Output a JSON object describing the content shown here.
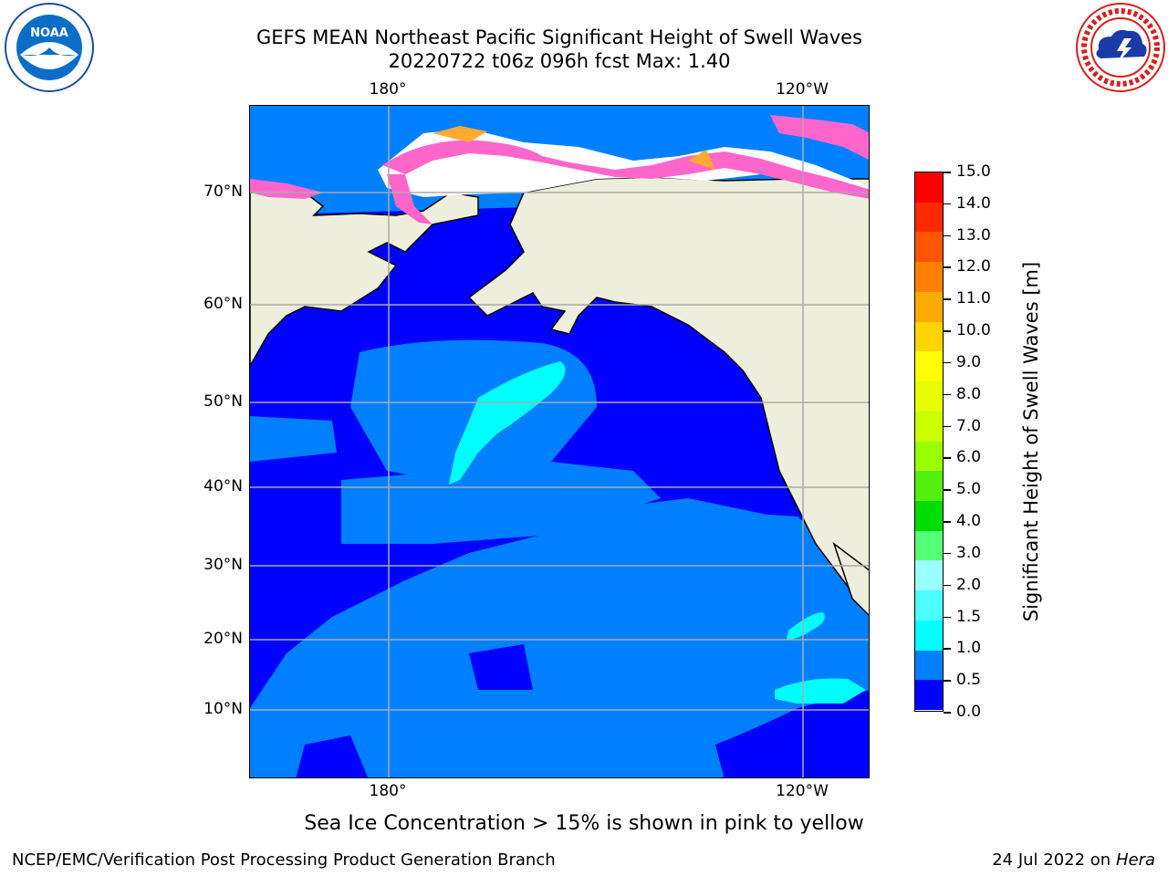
{
  "title_line1": "GEFS MEAN Northeast Pacific Significant Height of Swell Waves",
  "title_line2": "20220722 t06z 096h fcst   Max: 1.40",
  "logos": {
    "left": "noaa-logo",
    "right": "nws-logo"
  },
  "map": {
    "lon_labels": [
      "180°",
      "120°W"
    ],
    "lat_labels": [
      "70°N",
      "60°N",
      "50°N",
      "40°N",
      "30°N",
      "20°N",
      "10°N"
    ],
    "colors": {
      "land": "#eeeedd",
      "ice_white": "#ffffff",
      "ice_pink": "#ff66cc",
      "ice_orange": "#ffaa33",
      "band_0_0.5": "#0000ff",
      "band_0.5_1.0": "#0080ff",
      "band_1.0_1.5": "#00ffff",
      "band_1.5_2.0": "#4dffff"
    }
  },
  "colorbar": {
    "title": "Significant Height of Swell Waves [m]",
    "tick_labels": [
      "15.0",
      "14.0",
      "13.0",
      "12.0",
      "11.0",
      "10.0",
      "9.0",
      "8.0",
      "7.0",
      "6.0",
      "5.0",
      "4.0",
      "3.0",
      "2.0",
      "1.5",
      "1.0",
      "0.5",
      "0.0"
    ],
    "colors_top_to_bottom": [
      "#ff0000",
      "#ff2a00",
      "#ff5500",
      "#ff8000",
      "#ffaa00",
      "#ffd500",
      "#ffff00",
      "#e6ff00",
      "#ccff00",
      "#99ff00",
      "#55ee11",
      "#00dd00",
      "#55ff77",
      "#99ffff",
      "#4dffff",
      "#00ffff",
      "#0080ff",
      "#0000ff"
    ]
  },
  "note": "Sea Ice Concentration > 15% is shown in pink to yellow",
  "footer_left": "NCEP/EMC/Verification Post Processing Product Generation Branch",
  "footer_right_date": "24 Jul 2022 on",
  "footer_right_host": "Hera"
}
